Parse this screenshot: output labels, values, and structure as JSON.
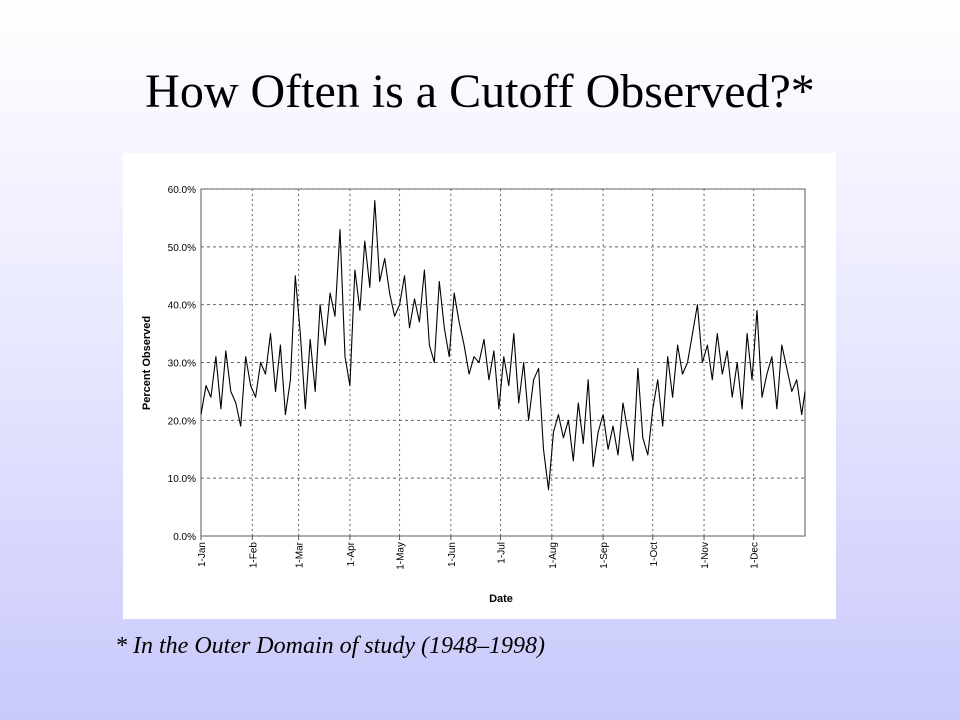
{
  "slide": {
    "title": "How Often is a Cutoff Observed?*",
    "footnote": "* In the Outer Domain of study (1948–1998)"
  },
  "chart_data": {
    "type": "line",
    "xlabel": "Date",
    "ylabel": "Percent Observed",
    "ylim": [
      0,
      60
    ],
    "yticks": [
      "0.0%",
      "10.0%",
      "20.0%",
      "30.0%",
      "40.0%",
      "50.0%",
      "60.0%"
    ],
    "xticks": [
      "1-Jan",
      "1-Feb",
      "1-Mar",
      "1-Apr",
      "1-May",
      "1-Jun",
      "1-Jul",
      "1-Aug",
      "1-Sep",
      "1-Oct",
      "1-Nov",
      "1-Dec"
    ],
    "xtick_days": [
      0,
      31,
      59,
      90,
      120,
      151,
      181,
      212,
      243,
      273,
      304,
      334
    ],
    "xlim_days": [
      0,
      365
    ],
    "grid": true,
    "line_color": "#000000",
    "series": [
      {
        "x_days": [
          0,
          3,
          6,
          9,
          12,
          15,
          18,
          21,
          24,
          27,
          30,
          33,
          36,
          39,
          42,
          45,
          48,
          51,
          54,
          57,
          60,
          63,
          66,
          69,
          72,
          75,
          78,
          81,
          84,
          87,
          90,
          93,
          96,
          99,
          102,
          105,
          108,
          111,
          114,
          117,
          120,
          123,
          126,
          129,
          132,
          135,
          138,
          141,
          144,
          147,
          150,
          153,
          156,
          159,
          162,
          165,
          168,
          171,
          174,
          177,
          180,
          183,
          186,
          189,
          192,
          195,
          198,
          201,
          204,
          207,
          210,
          213,
          216,
          219,
          222,
          225,
          228,
          231,
          234,
          237,
          240,
          243,
          246,
          249,
          252,
          255,
          258,
          261,
          264,
          267,
          270,
          273,
          276,
          279,
          282,
          285,
          288,
          291,
          294,
          297,
          300,
          303,
          306,
          309,
          312,
          315,
          318,
          321,
          324,
          327,
          330,
          333,
          336,
          339,
          342,
          345,
          348,
          351,
          354,
          357,
          360,
          363,
          365
        ],
        "values": [
          21,
          26,
          24,
          31,
          22,
          32,
          25,
          23,
          19,
          31,
          26,
          24,
          30,
          28,
          35,
          25,
          33,
          21,
          27,
          45,
          35,
          22,
          34,
          25,
          40,
          33,
          42,
          38,
          53,
          31,
          26,
          46,
          39,
          51,
          43,
          58,
          44,
          48,
          42,
          38,
          40,
          45,
          36,
          41,
          37,
          46,
          33,
          30,
          44,
          36,
          31,
          42,
          37,
          33,
          28,
          31,
          30,
          34,
          27,
          32,
          22,
          31,
          26,
          35,
          23,
          30,
          20,
          27,
          29,
          15,
          8,
          18,
          21,
          17,
          20,
          13,
          23,
          16,
          27,
          12,
          18,
          21,
          15,
          19,
          14,
          23,
          18,
          13,
          29,
          17,
          14,
          22,
          27,
          19,
          31,
          24,
          33,
          28,
          30,
          35,
          40,
          30,
          33,
          27,
          35,
          28,
          32,
          24,
          30,
          22,
          35,
          27,
          39,
          24,
          28,
          31,
          22,
          33,
          29,
          25,
          27,
          21,
          25
        ]
      }
    ]
  }
}
